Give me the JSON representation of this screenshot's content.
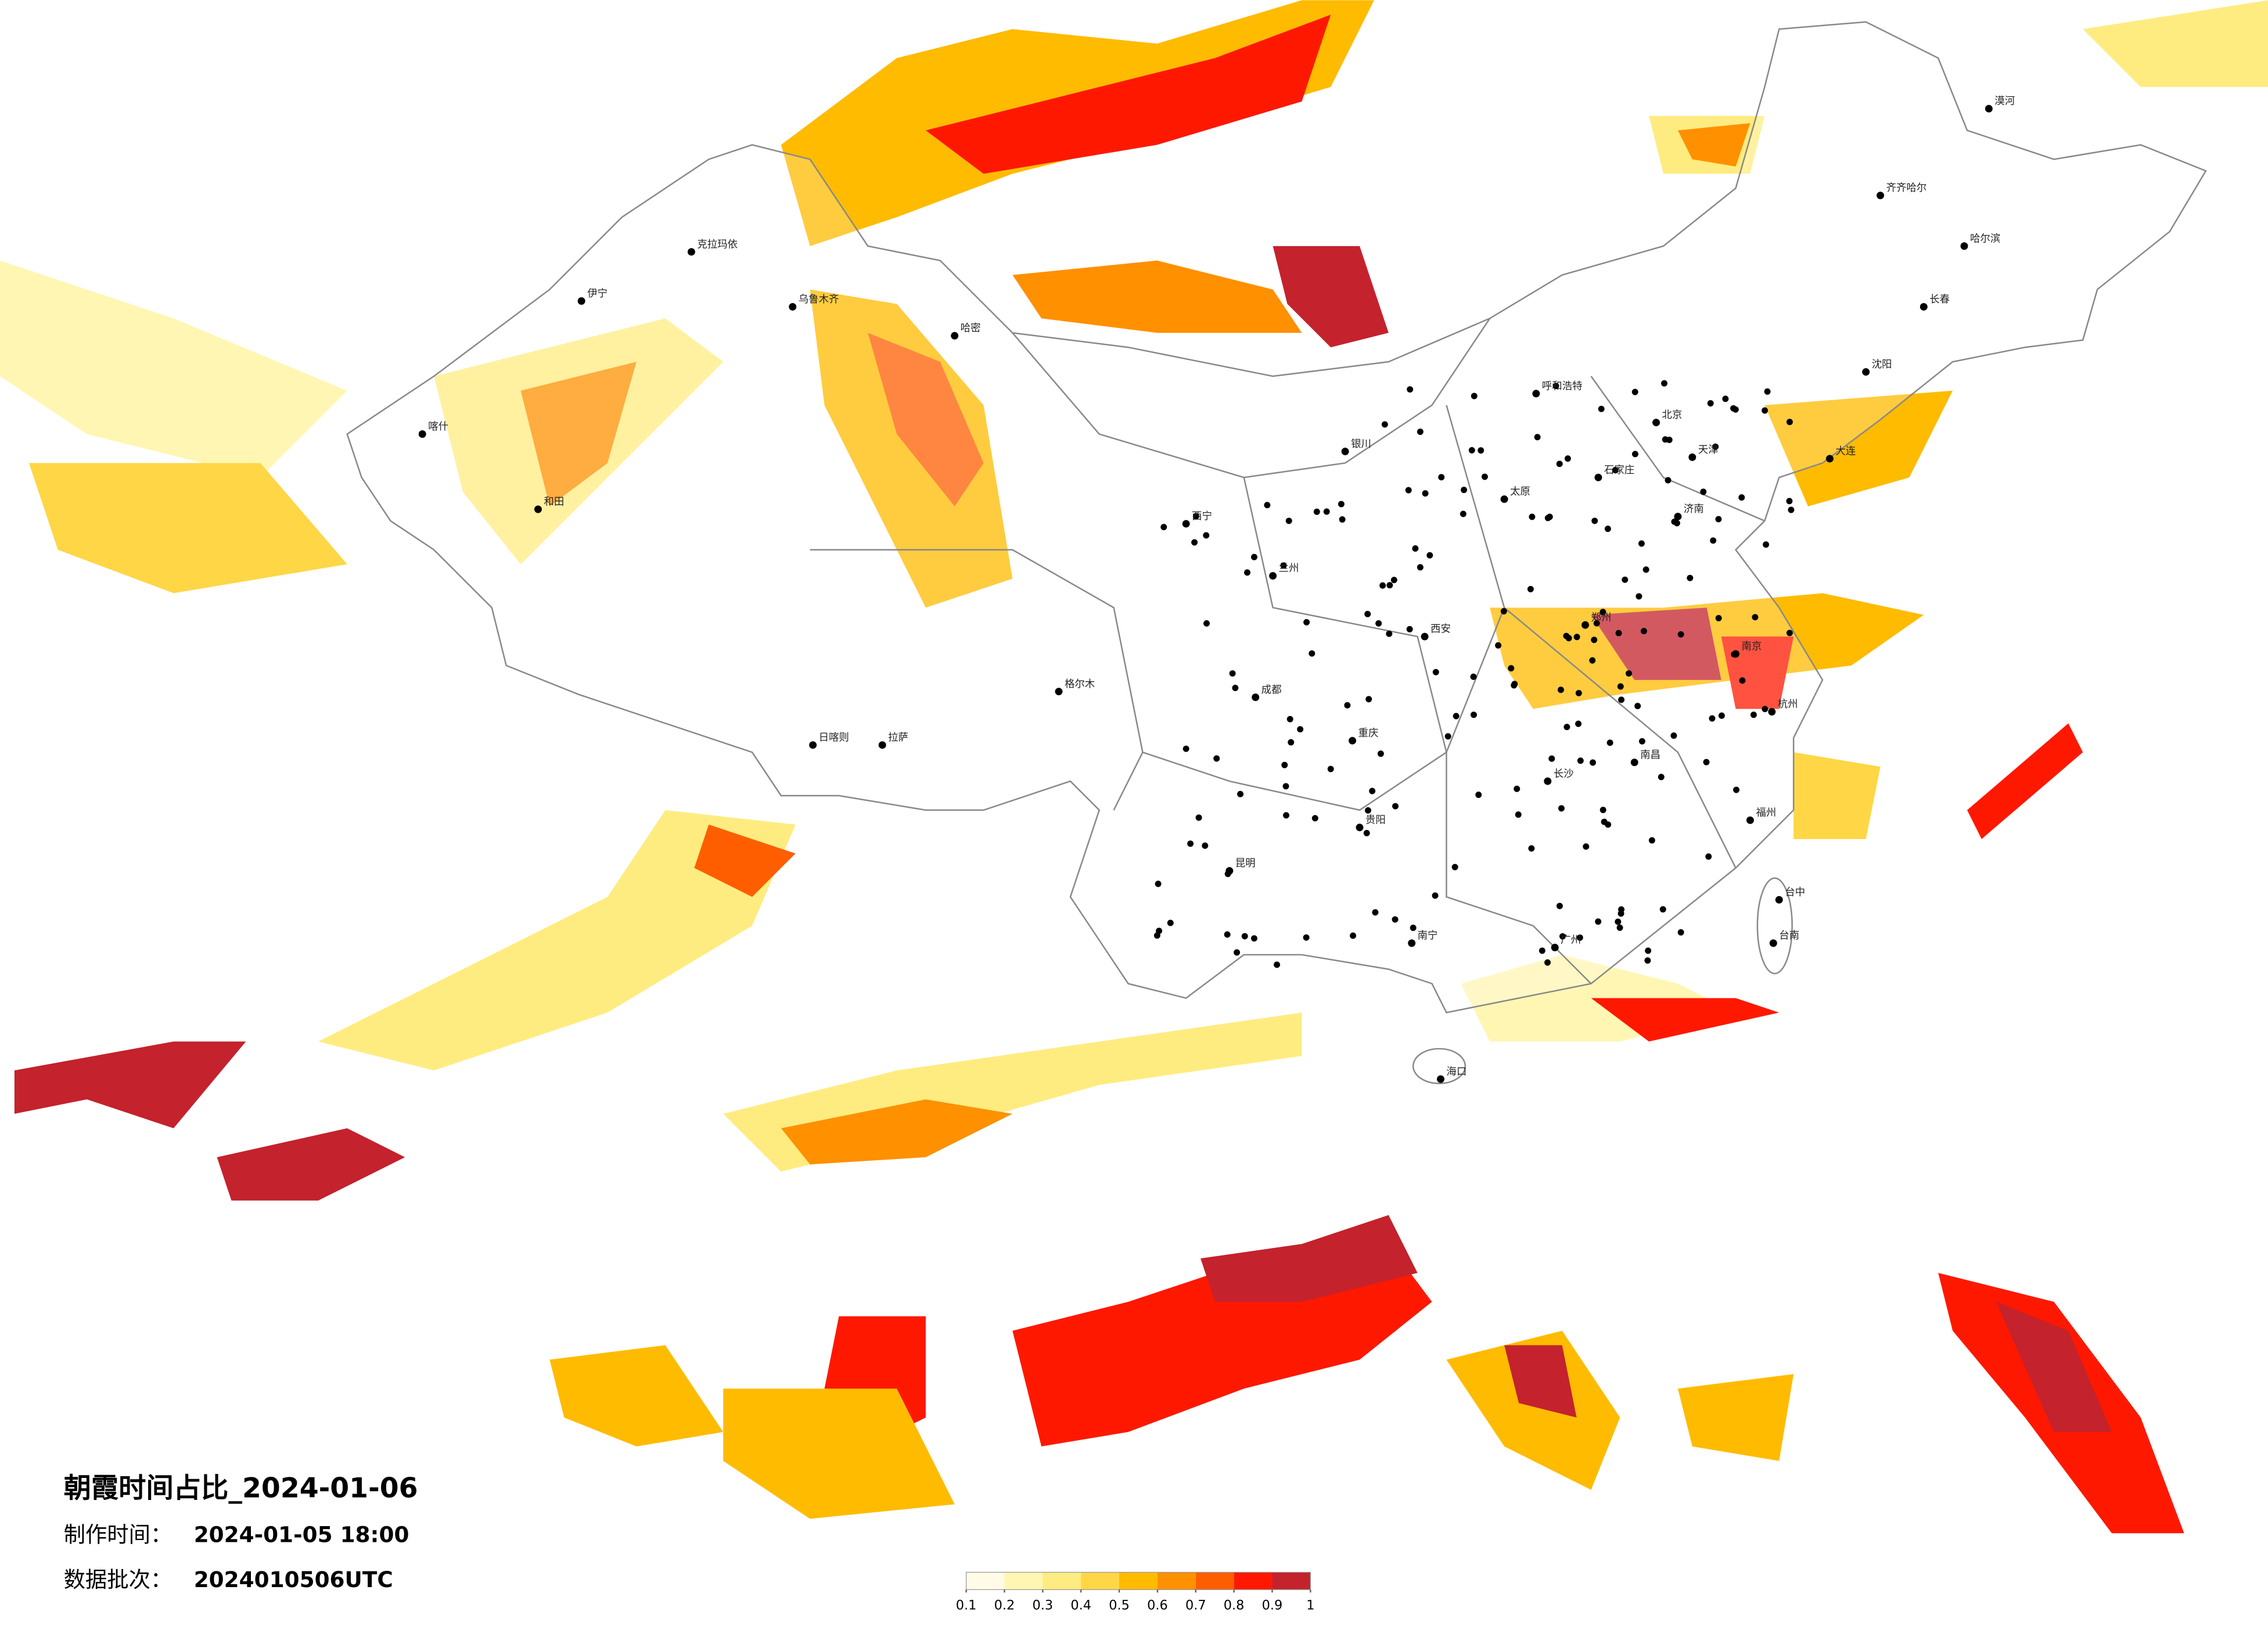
{
  "title": "朝霞时间占比_2024-01-06",
  "made_label": "制作时间：",
  "made_time": "2024-01-05 18:00",
  "batch_label": "数据批次：",
  "batch": "2024010506UTC",
  "legend": {
    "ticks": [
      0.1,
      0.2,
      0.3,
      0.4,
      0.5,
      0.6,
      0.7,
      0.8,
      0.9,
      1
    ],
    "colors": [
      "#fffbe6",
      "#fff6b3",
      "#ffec80",
      "#ffd645",
      "#ffbb00",
      "#ff9000",
      "#ff5e00",
      "#ff1800",
      "#c4222c"
    ]
  },
  "cities": [
    "乌鲁木齐",
    "哈密",
    "喀什",
    "和田",
    "克拉玛依",
    "伊宁",
    "拉萨",
    "日喀则",
    "西宁",
    "兰州",
    "银川",
    "呼和浩特",
    "北京",
    "天津",
    "石家庄",
    "太原",
    "济南",
    "郑州",
    "西安",
    "成都",
    "重庆",
    "贵阳",
    "昆明",
    "南宁",
    "广州",
    "长沙",
    "南昌",
    "南京",
    "杭州",
    "福州",
    "台中",
    "台南",
    "海口",
    "哈尔滨",
    "长春",
    "沈阳",
    "大连",
    "齐齐哈尔",
    "漠河",
    "格尔木"
  ]
}
